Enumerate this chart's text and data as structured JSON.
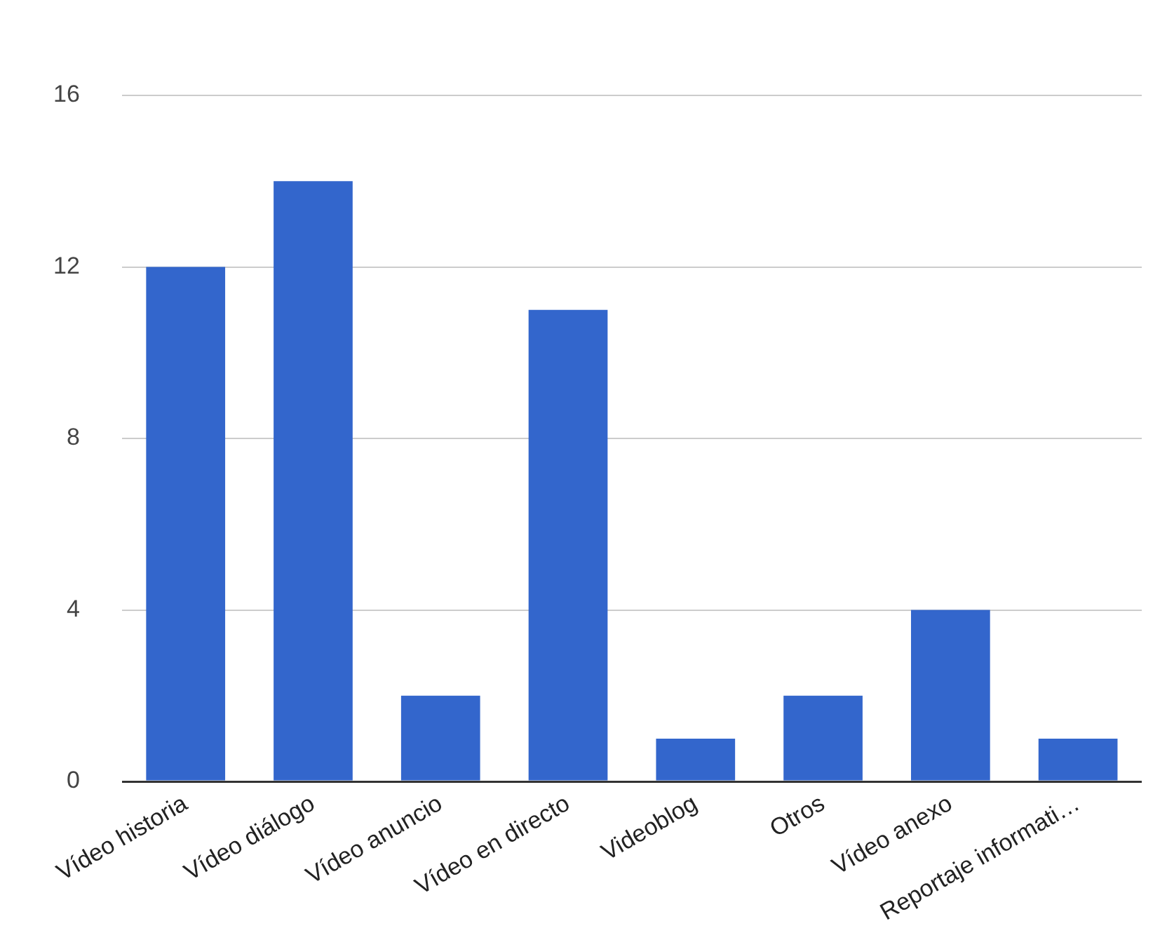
{
  "chart_data": {
    "type": "bar",
    "categories": [
      "Vídeo historia",
      "Vídeo diálogo",
      "Vídeo anuncio",
      "Vídeo en directo",
      "Videoblog",
      "Otros",
      "Vídeo anexo",
      "Reportaje informati…"
    ],
    "values": [
      12,
      14,
      2,
      11,
      1,
      2,
      4,
      1
    ],
    "color": "#3366cc",
    "ylim": [
      0,
      16
    ],
    "yticks": [
      0,
      4,
      8,
      12,
      16
    ],
    "grid": "y",
    "legend": false
  }
}
